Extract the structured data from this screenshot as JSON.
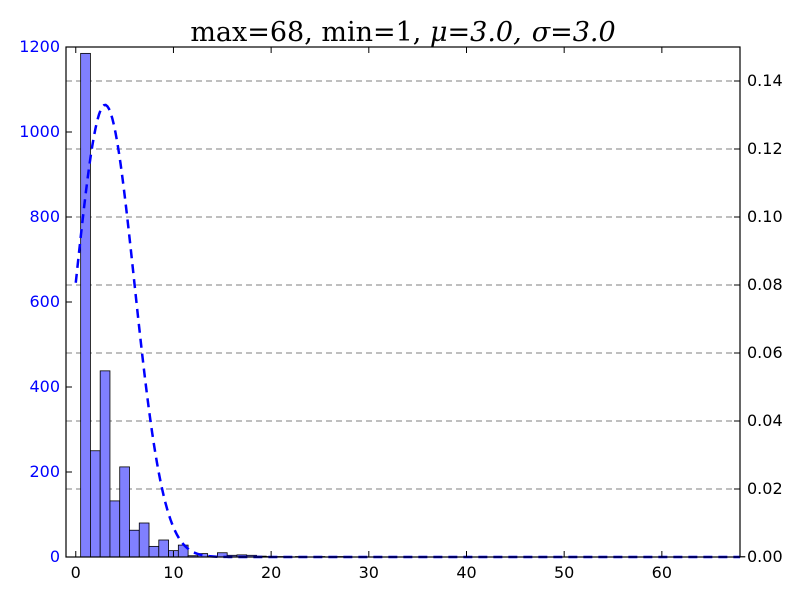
{
  "chart_data": {
    "type": "bar",
    "title": "max=68, min=1, μ=3.0, σ=3.0",
    "title_parts": {
      "plain": "max=68, min=1, ",
      "mu": "μ=3.0,",
      "sigma": "σ=3.0"
    },
    "xlabel": "",
    "ylabel": "",
    "xlim": [
      -1,
      68
    ],
    "ylim_left": [
      0,
      1200
    ],
    "ylim_right": [
      0,
      0.15
    ],
    "x_ticks": [
      0,
      10,
      20,
      30,
      40,
      50,
      60
    ],
    "y_ticks_left": [
      0,
      200,
      400,
      600,
      800,
      1000,
      1200
    ],
    "y_ticks_right": [
      0.0,
      0.02,
      0.04,
      0.06,
      0.08,
      0.1,
      0.12,
      0.14
    ],
    "x_tick_labels": [
      "0",
      "10",
      "20",
      "30",
      "40",
      "50",
      "60"
    ],
    "y_tick_labels_left": [
      "0",
      "200",
      "400",
      "600",
      "800",
      "1000",
      "1200"
    ],
    "y_tick_labels_right": [
      "0.00",
      "0.02",
      "0.04",
      "0.06",
      "0.08",
      "0.10",
      "0.12",
      "0.14"
    ],
    "grid": "horizontal dashed at right-axis ticks",
    "histogram": {
      "bin_width": 1,
      "bins": [
        {
          "start": 0.5,
          "count": 1185
        },
        {
          "start": 1.5,
          "count": 250
        },
        {
          "start": 2.5,
          "count": 438
        },
        {
          "start": 3.5,
          "count": 132
        },
        {
          "start": 4.5,
          "count": 212
        },
        {
          "start": 5.5,
          "count": 63
        },
        {
          "start": 6.5,
          "count": 80
        },
        {
          "start": 7.5,
          "count": 25
        },
        {
          "start": 8.5,
          "count": 40
        },
        {
          "start": 9.5,
          "count": 15
        },
        {
          "start": 10.5,
          "count": 28
        },
        {
          "start": 11.5,
          "count": 3
        },
        {
          "start": 12.5,
          "count": 8
        },
        {
          "start": 13.5,
          "count": 2
        },
        {
          "start": 14.5,
          "count": 10
        },
        {
          "start": 15.5,
          "count": 4
        },
        {
          "start": 16.5,
          "count": 5
        },
        {
          "start": 17.5,
          "count": 4
        },
        {
          "start": 18.5,
          "count": 2
        },
        {
          "start": 19.5,
          "count": 1
        },
        {
          "start": 20.5,
          "count": 1
        },
        {
          "start": 22.5,
          "count": 1
        },
        {
          "start": 24.5,
          "count": 1
        },
        {
          "start": 26.5,
          "count": 1
        },
        {
          "start": 67.5,
          "count": 1
        }
      ]
    },
    "density_curve": {
      "mu": 3.0,
      "sigma": 3.0,
      "x_start": 0,
      "x_end": 68,
      "style": "dashed"
    },
    "colors": {
      "bar_fill": "#8080ff",
      "bar_edge": "#000000",
      "curve": "#0000ff",
      "left_tick_text": "#0000ff",
      "right_tick_text": "#000000"
    }
  }
}
